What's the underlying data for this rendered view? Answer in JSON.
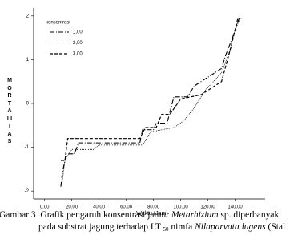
{
  "chart_data": {
    "type": "line",
    "x_label": "Waktu (Jam)",
    "y_label": "MORTALITAS",
    "legend_title": "konsentrasi",
    "xlim": [
      -8,
      162
    ],
    "ylim": [
      -2.18,
      2.18
    ],
    "xticks": [
      {
        "value": 0,
        "label": "0.00"
      },
      {
        "value": 20,
        "label": "20.00"
      },
      {
        "value": 40,
        "label": "40.00"
      },
      {
        "value": 60,
        "label": "60.00"
      },
      {
        "value": 80,
        "label": "80.00"
      },
      {
        "value": 100,
        "label": "100.00"
      },
      {
        "value": 120,
        "label": "120.00"
      },
      {
        "value": 140,
        "label": "140.00"
      }
    ],
    "yticks": [
      2,
      1,
      0,
      -1,
      -2
    ],
    "series": [
      {
        "name": "1,00",
        "color": "#000000",
        "dash": "6 2 1 2",
        "width": 1.1,
        "x": [
          12,
          13,
          16,
          22,
          25,
          70,
          72,
          80,
          82,
          90,
          95,
          105,
          110,
          120,
          130,
          133,
          138,
          143,
          145
        ],
        "values": [
          -1.9,
          -1.6,
          -1.15,
          -1.15,
          -0.9,
          -0.9,
          -0.6,
          -0.6,
          -0.45,
          -0.45,
          0.15,
          0.15,
          0.4,
          0.6,
          0.8,
          1.1,
          1.5,
          1.95,
          1.95
        ]
      },
      {
        "name": "2,00",
        "color": "#000000",
        "dash": "1 1",
        "width": 0.8,
        "x": [
          13,
          15,
          20,
          36,
          40,
          72,
          78,
          86,
          95,
          102,
          110,
          118,
          130,
          136,
          140,
          144
        ],
        "values": [
          -1.8,
          -1.3,
          -1.05,
          -1.05,
          -0.95,
          -0.95,
          -0.65,
          -0.6,
          -0.55,
          -0.4,
          -0.1,
          0.3,
          0.7,
          1.2,
          1.7,
          1.95
        ]
      },
      {
        "name": "3,00",
        "color": "#000000",
        "dash": "4 2",
        "width": 1.2,
        "x": [
          12,
          15,
          17,
          70,
          74,
          82,
          86,
          92,
          100,
          115,
          130,
          137,
          142,
          145
        ],
        "values": [
          -1.3,
          -1.3,
          -0.8,
          -0.8,
          -0.55,
          -0.55,
          -0.25,
          -0.25,
          0.1,
          0.2,
          0.5,
          1.3,
          1.95,
          1.95
        ]
      }
    ]
  },
  "caption": {
    "label": "Gambar 3",
    "line1": [
      "Grafik pengaruh konsentrasi jamur ",
      "Metarhizium",
      " sp. diperbanyak"
    ],
    "line2": [
      "pada substrat jagung terhadap LT ",
      "50",
      " nimfa ",
      "Nilaparvata lugens",
      " (Stal"
    ]
  }
}
